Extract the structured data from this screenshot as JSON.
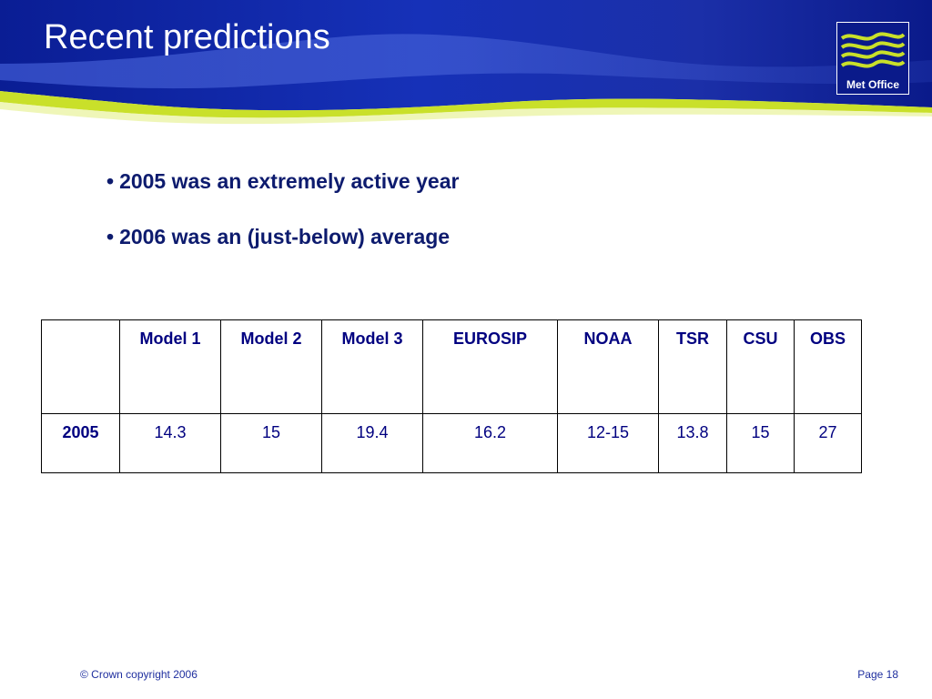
{
  "slide": {
    "title": "Recent predictions",
    "logo_text": "Met Office",
    "bullets": [
      "2005 was an extremely active year",
      "2006 was an (just-below) average"
    ]
  },
  "table": {
    "headers": [
      "",
      "Model 1",
      "Model 2",
      "Model 3",
      "EUROSIP",
      "NOAA",
      "TSR",
      "CSU",
      "OBS"
    ],
    "rows": [
      {
        "label": "2005",
        "values": [
          "14.3",
          "15",
          "19.4",
          "16.2",
          "12-15",
          "13.8",
          "15",
          "27"
        ]
      }
    ]
  },
  "footer": {
    "copyright": "© Crown copyright 2006",
    "page": "Page 18"
  },
  "colors": {
    "banner_blue": "#0a1f9a",
    "banner_green": "#c9e02a",
    "text_navy": "#0d1b6e",
    "table_text": "#000080"
  },
  "icons": {
    "logo": "met-office-wave-logo"
  }
}
